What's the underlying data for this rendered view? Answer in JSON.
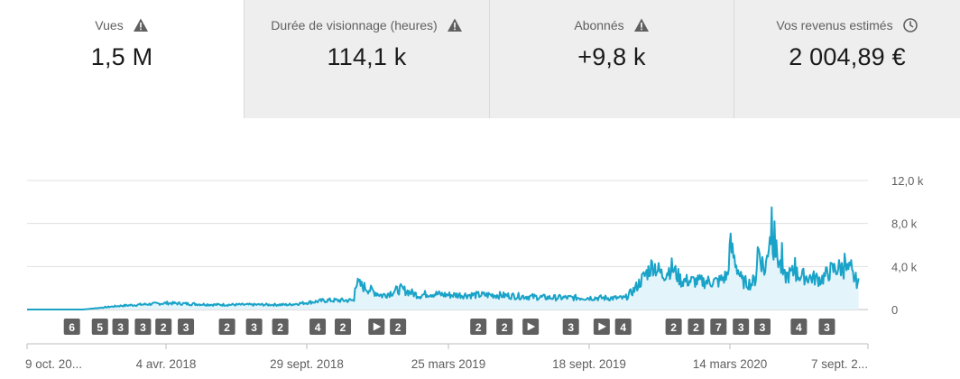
{
  "metrics": [
    {
      "label": "Vues",
      "value": "1,5 M",
      "icon": "warning-icon",
      "active": true
    },
    {
      "label": "Durée de visionnage (heures)",
      "value": "114,1 k",
      "icon": "warning-icon",
      "active": false
    },
    {
      "label": "Abonnés",
      "value": "+9,8 k",
      "icon": "warning-icon",
      "active": false
    },
    {
      "label": "Vos revenus estimés",
      "value": "2 004,89 €",
      "icon": "clock-icon",
      "active": false
    }
  ],
  "colors": {
    "line": "#1aa3c8",
    "fill": "#e3f4fa",
    "marker": "#606060",
    "grid": "#e0e0e0"
  },
  "chart_data": {
    "type": "area",
    "x_tick_labels": [
      "9 oct. 20...",
      "4 avr. 2018",
      "29 sept. 2018",
      "25 mars 2019",
      "18 sept. 2019",
      "14 mars 2020",
      "7 sept. 2..."
    ],
    "y_tick_labels": [
      "12,0 k",
      "8,0 k",
      "4,0 k",
      "0"
    ],
    "ylim": [
      0,
      12000
    ],
    "x_days": [
      0,
      35,
      60,
      100,
      150,
      200,
      280,
      320,
      350,
      351,
      380,
      400,
      420,
      430,
      450,
      500,
      560,
      600,
      640,
      650,
      670,
      680,
      690,
      700,
      720,
      740,
      750,
      752,
      765,
      775,
      780,
      782,
      790,
      795,
      810,
      820,
      830,
      850,
      860,
      870,
      880,
      890
    ],
    "y_values": [
      0,
      0,
      0,
      350,
      600,
      450,
      450,
      850,
      850,
      2500,
      1300,
      1900,
      1300,
      1500,
      1350,
      1350,
      1100,
      1100,
      1050,
      1850,
      4200,
      3200,
      3900,
      2700,
      2600,
      2600,
      3200,
      6100,
      2600,
      2400,
      2900,
      5800,
      3400,
      7200,
      3000,
      3400,
      3100,
      2800,
      3600,
      3900,
      3600,
      2400
    ],
    "spikes": [
      [
        752,
        6100
      ],
      [
        782,
        5800
      ],
      [
        797,
        9500
      ],
      [
        800,
        8200
      ],
      [
        808,
        6200
      ],
      [
        822,
        4800
      ],
      [
        875,
        5200
      ],
      [
        882,
        4600
      ]
    ],
    "markers": [
      {
        "label": "6",
        "day": 48,
        "type": "number"
      },
      {
        "label": "5",
        "day": 78,
        "type": "number"
      },
      {
        "label": "3",
        "day": 100,
        "type": "number"
      },
      {
        "label": "3",
        "day": 124,
        "type": "number"
      },
      {
        "label": "2",
        "day": 146,
        "type": "number"
      },
      {
        "label": "3",
        "day": 170,
        "type": "number"
      },
      {
        "label": "2",
        "day": 214,
        "type": "number"
      },
      {
        "label": "3",
        "day": 243,
        "type": "number"
      },
      {
        "label": "2",
        "day": 271,
        "type": "number"
      },
      {
        "label": "4",
        "day": 311,
        "type": "number"
      },
      {
        "label": "2",
        "day": 338,
        "type": "number"
      },
      {
        "label": "",
        "day": 374,
        "type": "play"
      },
      {
        "label": "2",
        "day": 397,
        "type": "number"
      },
      {
        "label": "2",
        "day": 483,
        "type": "number"
      },
      {
        "label": "2",
        "day": 511,
        "type": "number"
      },
      {
        "label": "",
        "day": 539,
        "type": "play"
      },
      {
        "label": "3",
        "day": 582,
        "type": "number"
      },
      {
        "label": "",
        "day": 615,
        "type": "play"
      },
      {
        "label": "4",
        "day": 638,
        "type": "number"
      },
      {
        "label": "2",
        "day": 692,
        "type": "number"
      },
      {
        "label": "2",
        "day": 716,
        "type": "number"
      },
      {
        "label": "7",
        "day": 740,
        "type": "number"
      },
      {
        "label": "3",
        "day": 764,
        "type": "number"
      },
      {
        "label": "3",
        "day": 787,
        "type": "number"
      },
      {
        "label": "4",
        "day": 826,
        "type": "number"
      },
      {
        "label": "3",
        "day": 856,
        "type": "number"
      }
    ]
  }
}
